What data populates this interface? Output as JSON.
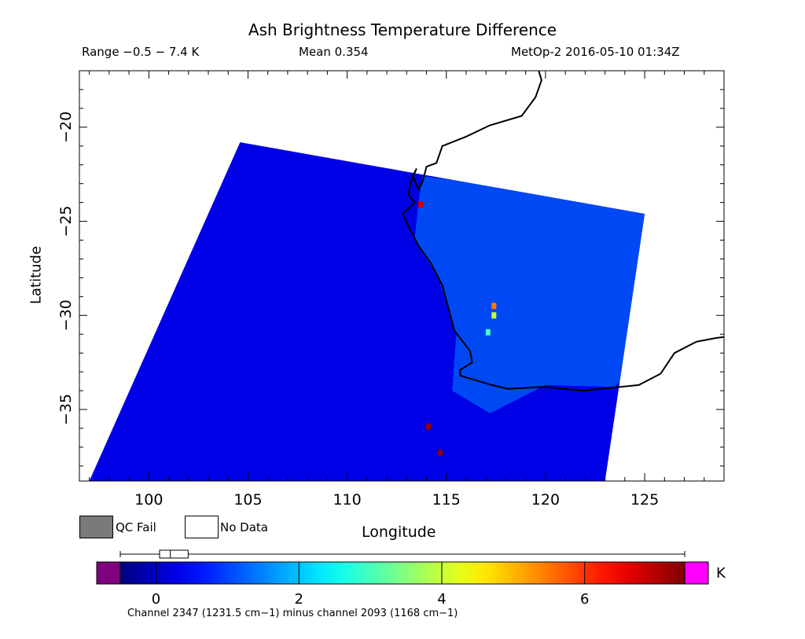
{
  "header": {
    "title": "Ash Brightness Temperature Difference",
    "range": "Range −0.5 − 7.4 K",
    "mean": "Mean 0.354",
    "satellite_time": "MetOp-2 2016-05-10 01:34Z"
  },
  "legend": {
    "qc_fail": "QC Fail",
    "no_data": "No Data",
    "qc_fail_color": "#7a7a7a",
    "no_data_color": "#ffffff"
  },
  "colorbar": {
    "unit": "K",
    "min": -0.5,
    "max": 7.4,
    "ticks": [
      "0",
      "2",
      "4",
      "6"
    ],
    "tick_values": [
      0,
      2,
      4,
      6
    ],
    "under_color": "#800080",
    "over_color": "#ff00ff",
    "boxplot": {
      "whisker_min": -0.5,
      "q1": 0.05,
      "median": 0.2,
      "q3": 0.45,
      "whisker_max": 7.4
    }
  },
  "footnote": "Channel 2347 (1231.5 cm−1) minus channel 2093 (1168 cm−1)",
  "chart_data": {
    "type": "heatmap",
    "title": "Ash Brightness Temperature Difference",
    "xlabel": "Longitude",
    "ylabel": "Latitude",
    "xlim": [
      96.5,
      129
    ],
    "ylim": [
      -38.8,
      -17
    ],
    "xticks": [
      "100",
      "105",
      "110",
      "115",
      "120",
      "125"
    ],
    "xtick_values": [
      100,
      105,
      110,
      115,
      120,
      125
    ],
    "yticks": [
      "−20",
      "−25",
      "−30",
      "−35"
    ],
    "ytick_values": [
      -20,
      -25,
      -30,
      -35
    ],
    "swath_corners_lonlat": [
      [
        104.6,
        -20.8
      ],
      [
        125.0,
        -24.6
      ],
      [
        123.0,
        -38.8
      ],
      [
        97.0,
        -38.8
      ]
    ],
    "background_value_K": 0.3,
    "land_enhanced_region_value_K": 1.5,
    "hotspots": [
      {
        "lon": 113.7,
        "lat": -24.1,
        "value": 6.8
      },
      {
        "lon": 117.4,
        "lat": -29.5,
        "value": 5.5
      },
      {
        "lon": 117.4,
        "lat": -30.0,
        "value": 4.0
      },
      {
        "lon": 117.1,
        "lat": -30.9,
        "value": 3.0
      },
      {
        "lon": 114.1,
        "lat": -35.9,
        "value": 7.2
      },
      {
        "lon": 114.7,
        "lat": -37.3,
        "value": 7.3
      }
    ]
  }
}
